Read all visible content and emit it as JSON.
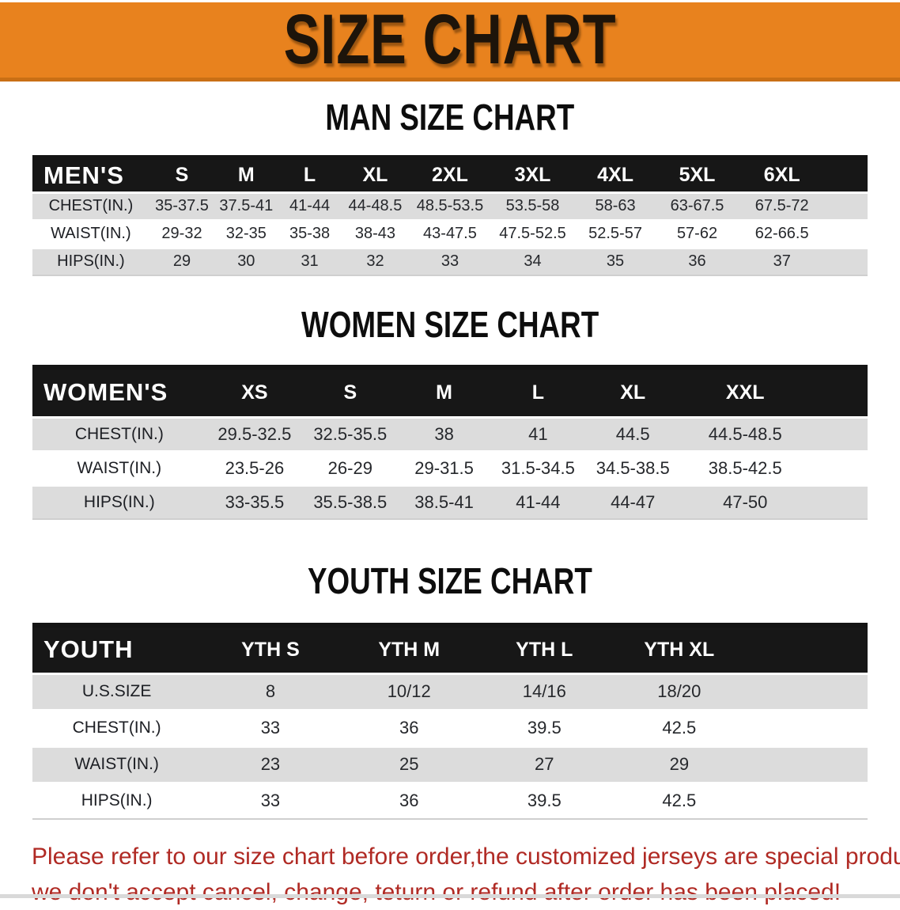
{
  "banner": {
    "title": "SIZE CHART"
  },
  "colors": {
    "banner_bg": "#e8821e",
    "banner_edge": "#c96f15",
    "header_bar": "#171717",
    "row_gray": "#dcdcdc",
    "row_white": "#ffffff",
    "disclaimer_red": "#b02a24"
  },
  "sections": [
    {
      "title": "MAN SIZE CHART",
      "corner_label": "MEN'S",
      "columns": [
        "S",
        "M",
        "L",
        "XL",
        "2XL",
        "3XL",
        "4XL",
        "5XL",
        "6XL"
      ],
      "rows": [
        {
          "label": "CHEST(IN.)",
          "values": [
            "35-37.5",
            "37.5-41",
            "41-44",
            "44-48.5",
            "48.5-53.5",
            "53.5-58",
            "58-63",
            "63-67.5",
            "67.5-72"
          ]
        },
        {
          "label": "WAIST(IN.)",
          "values": [
            "29-32",
            "32-35",
            "35-38",
            "38-43",
            "43-47.5",
            "47.5-52.5",
            "52.5-57",
            "57-62",
            "62-66.5"
          ]
        },
        {
          "label": "HIPS(IN.)",
          "values": [
            "29",
            "30",
            "31",
            "32",
            "33",
            "34",
            "35",
            "36",
            "37"
          ]
        }
      ]
    },
    {
      "title": "WOMEN SIZE CHART",
      "corner_label": "WOMEN'S",
      "columns": [
        "XS",
        "S",
        "M",
        "L",
        "XL",
        "XXL"
      ],
      "rows": [
        {
          "label": "CHEST(IN.)",
          "values": [
            "29.5-32.5",
            "32.5-35.5",
            "38",
            "41",
            "44.5",
            "44.5-48.5"
          ]
        },
        {
          "label": "WAIST(IN.)",
          "values": [
            "23.5-26",
            "26-29",
            "29-31.5",
            "31.5-34.5",
            "34.5-38.5",
            "38.5-42.5"
          ]
        },
        {
          "label": "HIPS(IN.)",
          "values": [
            "33-35.5",
            "35.5-38.5",
            "38.5-41",
            "41-44",
            "44-47",
            "47-50"
          ]
        }
      ]
    },
    {
      "title": "YOUTH SIZE CHART",
      "corner_label": "YOUTH",
      "columns": [
        "YTH S",
        "YTH M",
        "YTH L",
        "YTH XL"
      ],
      "rows": [
        {
          "label": "U.S.SIZE",
          "values": [
            "8",
            "10/12",
            "14/16",
            "18/20"
          ]
        },
        {
          "label": "CHEST(IN.)",
          "values": [
            "33",
            "36",
            "39.5",
            "42.5"
          ]
        },
        {
          "label": "WAIST(IN.)",
          "values": [
            "23",
            "25",
            "27",
            "29"
          ]
        },
        {
          "label": "HIPS(IN.)",
          "values": [
            "33",
            "36",
            "39.5",
            "42.5"
          ]
        }
      ]
    }
  ],
  "disclaimer": {
    "line1": "Please refer to our size chart before order,the customized jerseys are special products,",
    "line2": "we don't accept cancel, change, teturn or refund after order has been placed!"
  }
}
